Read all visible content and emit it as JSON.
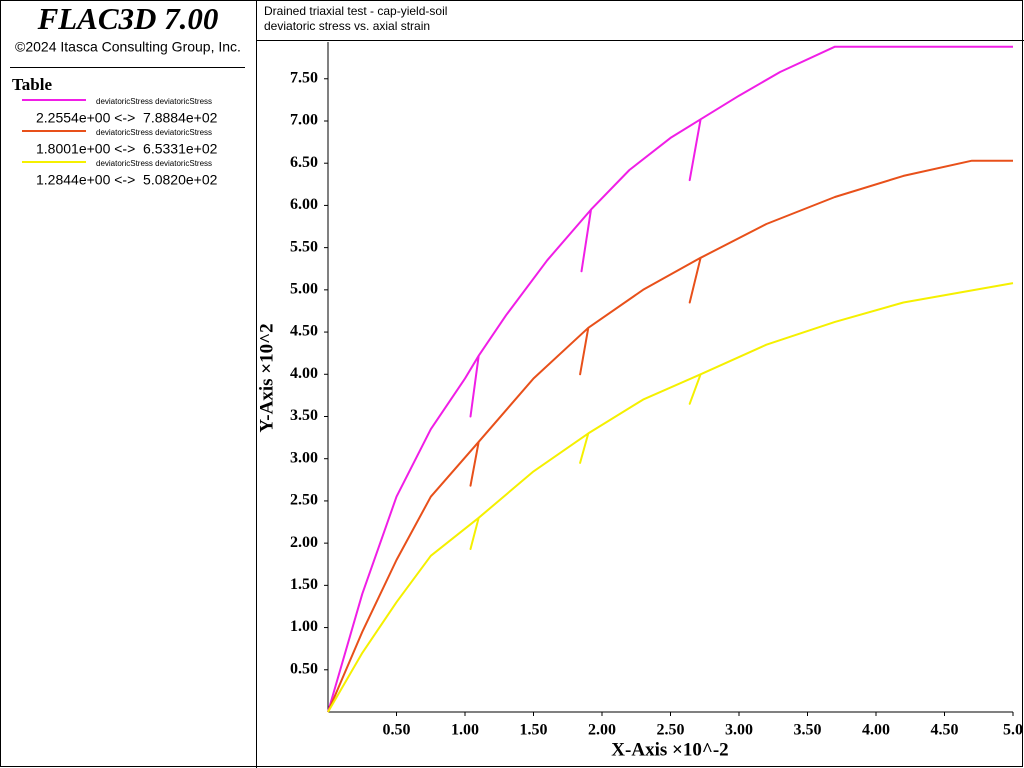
{
  "header": {
    "title": "FLAC3D 7.00",
    "copyright": "©2024 Itasca Consulting Group, Inc.",
    "panel": "Table"
  },
  "chart_data": {
    "type": "line",
    "title": "Drained triaxial test - cap-yield-soil",
    "subtitle": "deviatoric stress vs. axial strain",
    "x_label": "X-Axis ×10^-2",
    "y_label": "Y-Axis ×10^2",
    "xlim": [
      0,
      5
    ],
    "ylim": [
      0,
      7.9
    ],
    "xticks": [
      {
        "value": 0.5,
        "label": "0.50"
      },
      {
        "value": 1,
        "label": "1.00"
      },
      {
        "value": 1.5,
        "label": "1.50"
      },
      {
        "value": 2,
        "label": "2.00"
      },
      {
        "value": 2.5,
        "label": "2.50"
      },
      {
        "value": 3,
        "label": "3.00"
      },
      {
        "value": 3.5,
        "label": "3.50"
      },
      {
        "value": 4,
        "label": "4.00"
      },
      {
        "value": 4.5,
        "label": "4.50"
      },
      {
        "value": 5,
        "label": "5.0"
      }
    ],
    "yticks": [
      {
        "value": 0.5,
        "label": "0.50"
      },
      {
        "value": 1,
        "label": "1.00"
      },
      {
        "value": 1.5,
        "label": "1.50"
      },
      {
        "value": 2,
        "label": "2.00"
      },
      {
        "value": 2.5,
        "label": "2.50"
      },
      {
        "value": 3,
        "label": "3.00"
      },
      {
        "value": 3.5,
        "label": "3.50"
      },
      {
        "value": 4,
        "label": "4.00"
      },
      {
        "value": 4.5,
        "label": "4.50"
      },
      {
        "value": 5,
        "label": "5.00"
      },
      {
        "value": 5.5,
        "label": "5.50"
      },
      {
        "value": 6,
        "label": "6.00"
      },
      {
        "value": 6.5,
        "label": "6.50"
      },
      {
        "value": 7,
        "label": "7.00"
      },
      {
        "value": 7.5,
        "label": "7.50"
      }
    ],
    "series": [
      {
        "name": "deviatoricStress deviatoricStress",
        "range": "2.2554e+00 <->  7.8884e+02",
        "color": "#f01ee6",
        "x": [
          0,
          0.25,
          0.5,
          0.75,
          1.0,
          1.1,
          1.04,
          1.1,
          1.3,
          1.6,
          1.92,
          1.85,
          1.92,
          2.2,
          2.5,
          2.72,
          2.64,
          2.72,
          3.0,
          3.3,
          3.7,
          5.0
        ],
        "values": [
          0,
          1.4,
          2.55,
          3.35,
          3.95,
          4.22,
          3.5,
          4.22,
          4.7,
          5.35,
          5.95,
          5.22,
          5.95,
          6.42,
          6.8,
          7.02,
          6.3,
          7.02,
          7.3,
          7.58,
          7.88,
          7.88
        ]
      },
      {
        "name": "deviatoricStress deviatoricStress",
        "range": "1.8001e+00 <->  6.5331e+02",
        "color": "#e8501a",
        "x": [
          0,
          0.25,
          0.5,
          0.75,
          1.1,
          1.04,
          1.1,
          1.5,
          1.9,
          1.84,
          1.9,
          2.3,
          2.72,
          2.64,
          2.72,
          3.2,
          3.7,
          4.2,
          4.7,
          5.0
        ],
        "values": [
          0,
          0.95,
          1.8,
          2.55,
          3.2,
          2.68,
          3.2,
          3.95,
          4.55,
          4.0,
          4.55,
          5.0,
          5.38,
          4.85,
          5.38,
          5.78,
          6.1,
          6.35,
          6.53,
          6.53
        ]
      },
      {
        "name": "deviatoricStress deviatoricStress",
        "range": "1.2844e+00 <->  5.0820e+02",
        "color": "#f5f000",
        "x": [
          0,
          0.25,
          0.5,
          0.75,
          1.1,
          1.04,
          1.1,
          1.5,
          1.9,
          1.84,
          1.9,
          2.3,
          2.72,
          2.64,
          2.72,
          3.2,
          3.7,
          4.2,
          5.0
        ],
        "values": [
          0,
          0.7,
          1.3,
          1.85,
          2.3,
          1.93,
          2.3,
          2.85,
          3.3,
          2.95,
          3.3,
          3.7,
          4.0,
          3.65,
          4.0,
          4.35,
          4.62,
          4.85,
          5.08
        ]
      }
    ]
  }
}
